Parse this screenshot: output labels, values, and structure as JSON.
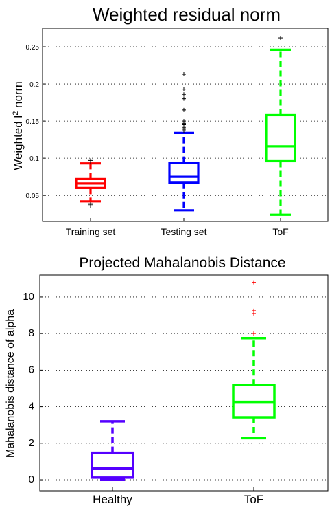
{
  "chart_data": [
    {
      "type": "box",
      "title": "Weighted residual norm",
      "ylabel_main": "Weighted l",
      "ylabel_sup": "2",
      "ylabel_tail": " norm",
      "ylim": [
        0.015,
        0.275
      ],
      "yticks": [
        0.05,
        0.1,
        0.15,
        0.2,
        0.25
      ],
      "ytick_labels": [
        "0.05",
        "0.1",
        "0.15",
        "0.2",
        "0.25"
      ],
      "grid": "horizontal dotted",
      "categories": [
        "Training set",
        "Testing set",
        "ToF"
      ],
      "boxes": [
        {
          "label": "Training set",
          "color": "#ff0000",
          "whisker_low": 0.042,
          "q1": 0.06,
          "median": 0.066,
          "q3": 0.072,
          "whisker_high": 0.093,
          "outliers": [
            0.036,
            0.038,
            0.095,
            0.097
          ]
        },
        {
          "label": "Testing set",
          "color": "#0000ff",
          "whisker_low": 0.03,
          "q1": 0.067,
          "median": 0.075,
          "q3": 0.094,
          "whisker_high": 0.134,
          "outliers": [
            0.137,
            0.139,
            0.141,
            0.143,
            0.145,
            0.147,
            0.15,
            0.165,
            0.18,
            0.186,
            0.193,
            0.213
          ]
        },
        {
          "label": "ToF",
          "color": "#00ff00",
          "whisker_low": 0.024,
          "q1": 0.096,
          "median": 0.116,
          "q3": 0.158,
          "whisker_high": 0.246,
          "outliers": [
            0.262
          ]
        }
      ]
    },
    {
      "type": "box",
      "title": "Projected Mahalanobis Distance",
      "ylabel": "Mahalanobis distance of alpha",
      "ylim": [
        -0.6,
        11.2
      ],
      "yticks": [
        0,
        2,
        4,
        6,
        8,
        10
      ],
      "ytick_labels": [
        "0",
        "2",
        "4",
        "6",
        "8",
        "10"
      ],
      "grid": "horizontal dotted",
      "categories": [
        "Healthy",
        "ToF"
      ],
      "boxes": [
        {
          "label": "Healthy",
          "color": "#5500ff",
          "whisker_low": 0.0,
          "q1": 0.12,
          "median": 0.62,
          "q3": 1.48,
          "whisker_high": 3.2,
          "outliers": []
        },
        {
          "label": "ToF",
          "color": "#00ff00",
          "whisker_low": 2.28,
          "q1": 3.42,
          "median": 4.26,
          "q3": 5.18,
          "whisker_high": 7.75,
          "outliers": [
            8.0,
            9.1,
            9.25,
            10.8
          ]
        }
      ],
      "outlier_color": "#ff0000"
    }
  ]
}
